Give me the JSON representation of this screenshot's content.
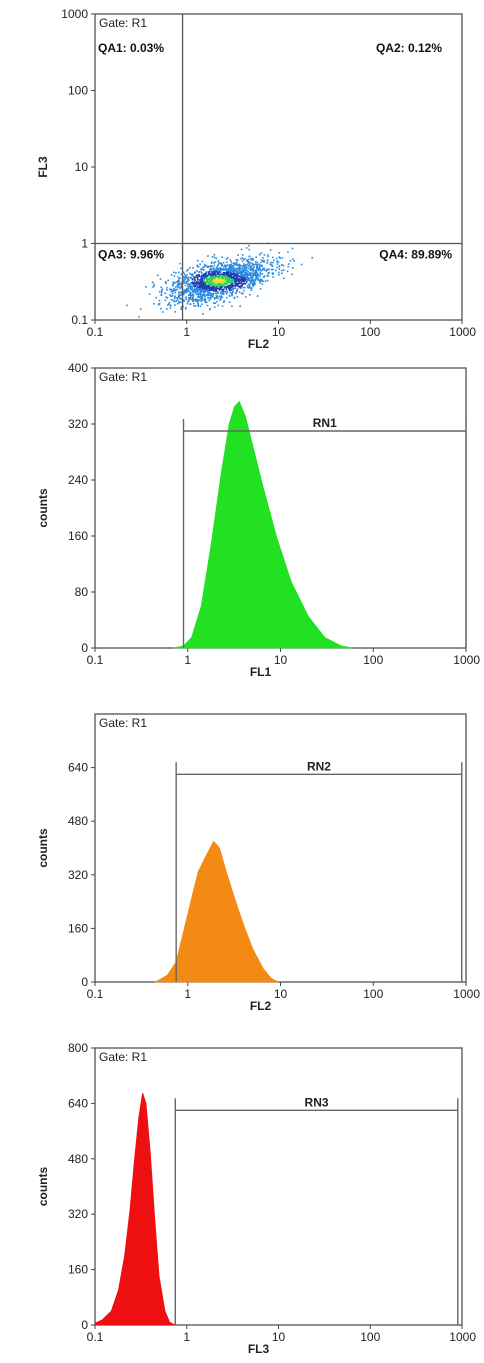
{
  "chart_data": [
    {
      "type": "scatter",
      "gate_label": "Gate: R1",
      "xlabel": "FL2",
      "ylabel": "FL3",
      "x_scale": "log",
      "y_scale": "log",
      "xlim": [
        0.1,
        1000
      ],
      "ylim": [
        0.1,
        1000
      ],
      "x_ticks": [
        "0.1",
        "1",
        "10",
        "100",
        "1000"
      ],
      "y_ticks": [
        "0.1",
        "1",
        "10",
        "100",
        "1000"
      ],
      "quadrant_gate": {
        "x": 0.9,
        "y": 1
      },
      "quadrants": [
        {
          "label": "QA1: 0.03%"
        },
        {
          "label": "QA2: 0.12%"
        },
        {
          "label": "QA3: 9.96%"
        },
        {
          "label": "QA4: 89.89%"
        }
      ],
      "population": {
        "center_x": 2.2,
        "center_y": 0.33,
        "colors": [
          "#2a8be0",
          "#1c3fb0",
          "#2fd25a",
          "#f0e020"
        ]
      }
    },
    {
      "type": "area",
      "gate_label": "Gate: R1",
      "xlabel": "FL1",
      "ylabel": "counts",
      "x_scale": "log",
      "xlim": [
        0.1,
        1000
      ],
      "ylim": [
        0,
        400
      ],
      "x_ticks": [
        "0.1",
        "1",
        "10",
        "100",
        "1000"
      ],
      "y_ticks": [
        "0",
        "80",
        "160",
        "240",
        "320",
        "400"
      ],
      "color": "#22e022",
      "marker": {
        "label": "RN1",
        "x1": 0.9,
        "x2": 1000,
        "y": 310
      },
      "x": [
        0.7,
        0.9,
        1.1,
        1.4,
        1.8,
        2.3,
        2.8,
        3.2,
        3.6,
        4.2,
        5.0,
        6.5,
        9.0,
        13,
        20,
        30,
        45,
        60
      ],
      "values": [
        0,
        3,
        15,
        60,
        150,
        250,
        320,
        345,
        352,
        330,
        290,
        230,
        160,
        95,
        45,
        15,
        3,
        0
      ]
    },
    {
      "type": "area",
      "gate_label": "Gate: R1",
      "xlabel": "FL2",
      "ylabel": "counts",
      "x_scale": "log",
      "xlim": [
        0.1,
        1000
      ],
      "ylim": [
        0,
        800
      ],
      "x_ticks": [
        "0.1",
        "1",
        "10",
        "100",
        "1000"
      ],
      "y_ticks": [
        "0",
        "160",
        "320",
        "480",
        "640"
      ],
      "color": "#f28a14",
      "marker": {
        "label": "RN2",
        "x1": 0.75,
        "x2": 900,
        "y": 620
      },
      "x": [
        0.45,
        0.6,
        0.75,
        0.9,
        1.1,
        1.3,
        1.6,
        1.9,
        2.2,
        2.6,
        3.2,
        4.0,
        5.0,
        6.5,
        8.0,
        9.5
      ],
      "values": [
        0,
        20,
        60,
        150,
        250,
        330,
        380,
        420,
        400,
        330,
        250,
        170,
        100,
        40,
        10,
        0
      ]
    },
    {
      "type": "area",
      "gate_label": "Gate: R1",
      "xlabel": "FL3",
      "ylabel": "counts",
      "x_scale": "log",
      "xlim": [
        0.1,
        1000
      ],
      "ylim": [
        0,
        800
      ],
      "x_ticks": [
        "0.1",
        "1",
        "10",
        "100",
        "1000"
      ],
      "y_ticks": [
        "0",
        "160",
        "320",
        "480",
        "640",
        "800"
      ],
      "color": "#ee1010",
      "marker": {
        "label": "RN3",
        "x1": 0.75,
        "x2": 900,
        "y": 620
      },
      "x": [
        0.1,
        0.12,
        0.15,
        0.18,
        0.21,
        0.24,
        0.27,
        0.3,
        0.33,
        0.36,
        0.4,
        0.45,
        0.5,
        0.58,
        0.65,
        0.75
      ],
      "values": [
        5,
        15,
        40,
        100,
        200,
        330,
        480,
        600,
        670,
        640,
        500,
        300,
        140,
        40,
        8,
        0
      ]
    }
  ]
}
